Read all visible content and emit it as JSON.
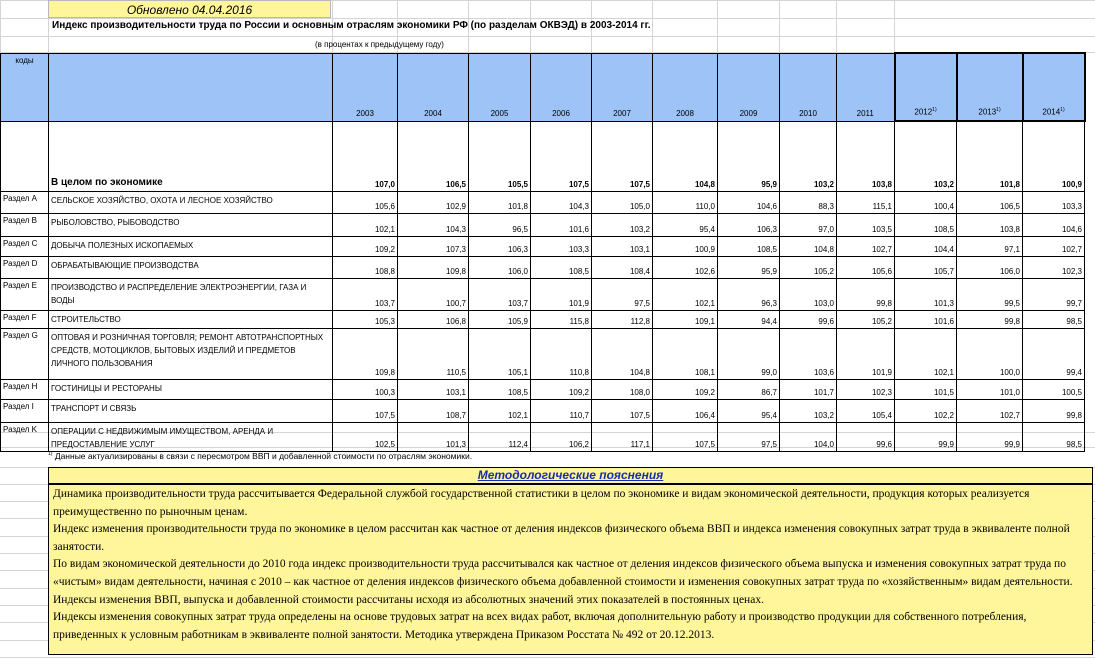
{
  "updated": "Обновлено 04.04.2016",
  "title": "Индекс производительности труда по России и основным отраслям экономики РФ (по разделам ОКВЭД)  в 2003-2014 гг.",
  "subtitle": "(в процентах к предыдущему году)",
  "table": {
    "code_header": "коды",
    "years": [
      "2003",
      "2004",
      "2005",
      "2006",
      "2007",
      "2008",
      "2009",
      "2010",
      "2011",
      "2012",
      "2013",
      "2014"
    ],
    "rows": [
      {
        "code": "",
        "name": "В целом по экономике",
        "values": [
          "107,0",
          "106,5",
          "105,5",
          "107,5",
          "107,5",
          "104,8",
          "95,9",
          "103,2",
          "103,8",
          "103,2",
          "101,8",
          "100,9"
        ]
      },
      {
        "code": "Раздел A",
        "name": "СЕЛЬСКОЕ ХОЗЯЙСТВО, ОХОТА И ЛЕСНОЕ ХОЗЯЙСТВО",
        "values": [
          "105,6",
          "102,9",
          "101,8",
          "104,3",
          "105,0",
          "110,0",
          "104,6",
          "88,3",
          "115,1",
          "100,4",
          "106,5",
          "103,3"
        ]
      },
      {
        "code": "Раздел B",
        "name": "РЫБОЛОВСТВО, РЫБОВОДСТВО",
        "values": [
          "102,1",
          "104,3",
          "96,5",
          "101,6",
          "103,2",
          "95,4",
          "106,3",
          "97,0",
          "103,5",
          "108,5",
          "103,8",
          "104,6"
        ]
      },
      {
        "code": "Раздел C",
        "name": "ДОБЫЧА ПОЛЕЗНЫХ ИСКОПАЕМЫХ",
        "values": [
          "109,2",
          "107,3",
          "106,3",
          "103,3",
          "103,1",
          "100,9",
          "108,5",
          "104,8",
          "102,7",
          "104,4",
          "97,1",
          "102,7"
        ]
      },
      {
        "code": "Раздел D",
        "name": "ОБРАБАТЫВАЮЩИЕ ПРОИЗВОДСТВА",
        "values": [
          "108,8",
          "109,8",
          "106,0",
          "108,5",
          "108,4",
          "102,6",
          "95,9",
          "105,2",
          "105,6",
          "105,7",
          "106,0",
          "102,3"
        ]
      },
      {
        "code": "Раздел E",
        "name": "ПРОИЗВОДСТВО И РАСПРЕДЕЛЕНИЕ ЭЛЕКТРОЭНЕРГИИ, ГАЗА И ВОДЫ",
        "values": [
          "103,7",
          "100,7",
          "103,7",
          "101,9",
          "97,5",
          "102,1",
          "96,3",
          "103,0",
          "99,8",
          "101,3",
          "99,5",
          "99,7"
        ]
      },
      {
        "code": "Раздел F",
        "name": "СТРОИТЕЛЬСТВО",
        "values": [
          "105,3",
          "106,8",
          "105,9",
          "115,8",
          "112,8",
          "109,1",
          "94,4",
          "99,6",
          "105,2",
          "101,6",
          "99,8",
          "98,5"
        ]
      },
      {
        "code": "Раздел G",
        "name": "ОПТОВАЯ  И  РОЗНИЧНАЯ  ТОРГОВЛЯ;  РЕМОНТ АВТОТРАНСПОРТНЫХ СРЕДСТВ,   МОТОЦИКЛОВ, БЫТОВЫХ ИЗДЕЛИЙ И ПРЕДМЕТОВ ЛИЧНОГО ПОЛЬЗОВАНИЯ",
        "values": [
          "109,8",
          "110,5",
          "105,1",
          "110,8",
          "104,8",
          "108,1",
          "99,0",
          "103,6",
          "101,9",
          "102,1",
          "100,0",
          "99,4"
        ]
      },
      {
        "code": "Раздел H",
        "name": "ГОСТИНИЦЫ И РЕСТОРАНЫ",
        "values": [
          "100,3",
          "103,1",
          "108,5",
          "109,2",
          "108,0",
          "109,2",
          "86,7",
          "101,7",
          "102,3",
          "101,5",
          "101,0",
          "100,5"
        ]
      },
      {
        "code": "Раздел I",
        "name": "ТРАНСПОРТ И СВЯЗЬ",
        "values": [
          "107,5",
          "108,7",
          "102,1",
          "110,7",
          "107,5",
          "106,4",
          "95,4",
          "103,2",
          "105,4",
          "102,2",
          "102,7",
          "99,8"
        ]
      },
      {
        "code": "Раздел K",
        "name": "ОПЕРАЦИИ С НЕДВИЖИМЫМ ИМУЩЕСТВОМ, АРЕНДА И ПРЕДОСТАВЛЕНИЕ УСЛУГ",
        "values": [
          "102,5",
          "101,3",
          "112,4",
          "106,2",
          "117,1",
          "107,5",
          "97,5",
          "104,0",
          "99,6",
          "99,9",
          "99,9",
          "98,5"
        ]
      }
    ]
  },
  "footnote": "Данные актуализированы в связи с пересмотром ВВП и добавленной стоимости по отраслям экономики.",
  "footnote_mark": "1)",
  "methodology": {
    "title": "Методологические пояснения",
    "paragraphs": [
      " Динамика производительности труда рассчитывается Федеральной службой государственной статистики в целом по экономике и видам экономической деятельности, продукция которых реализуется преимущественно по рыночным ценам.",
      " Индекс изменения производительности труда по экономике в целом рассчитан  как частное от деления индексов физического объема ВВП и индекса изменения совокупных затрат труда в эквиваленте полной занятости.",
      "По видам экономической деятельности до 2010 года индекс производительности труда рассчитывался как частное от деления индексов физического объема выпуска и изменения совокупных затрат труда по «чистым» видам деятельности,  начиная с 2010 – как частное от деления индексов физического объема добавленной стоимости и изменения совокупных затрат труда по «хозяйственным» видам деятельности.",
      " Индексы  изменения ВВП, выпуска и добавленной стоимости рассчитаны исходя из абсолютных значений этих показателей в постоянных ценах.",
      " Индексы изменения совокупных затрат труда определены на основе трудовых затрат на всех видах работ, включая дополнительную работу и производство продукции для собственного потребления, приведенных к условным работникам в эквиваленте полной занятости. Методика утверждена Приказом Росстата № 492 от 20.12.2013."
    ]
  }
}
